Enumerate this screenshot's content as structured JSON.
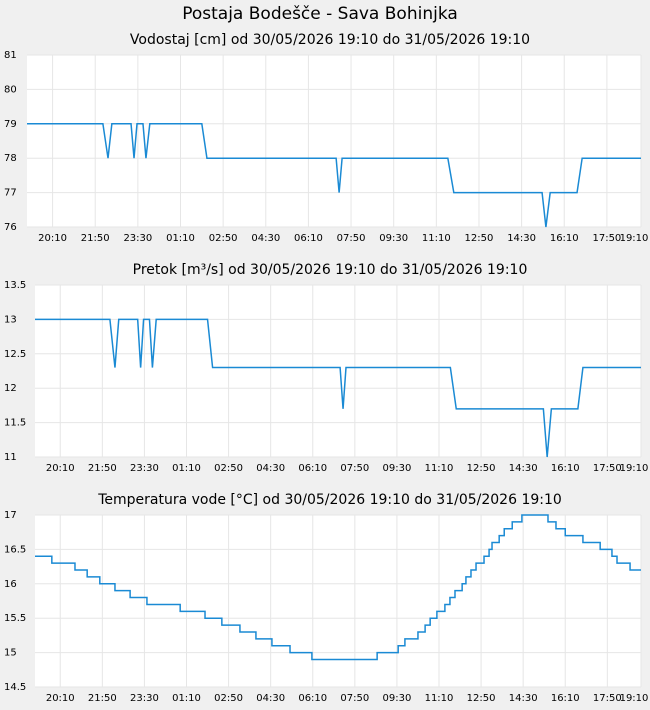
{
  "title": "Postaja Bodešče - Sava Bohinjka",
  "chart_data": [
    {
      "type": "line",
      "title": "Vodostaj [cm] od 30/05/2026 19:10 do 31/05/2026 19:10",
      "color": "#1a8ad4",
      "grid": true,
      "x": [
        0,
        178,
        190,
        199,
        244,
        251,
        258,
        272,
        279,
        288,
        410,
        422,
        725,
        732,
        739,
        987,
        1001,
        1208,
        1217,
        1227,
        1290,
        1302,
        1440
      ],
      "values": [
        79,
        79,
        78,
        79,
        79,
        78,
        79,
        79,
        78,
        79,
        79,
        78,
        78,
        77,
        78,
        78,
        77,
        77,
        76,
        77,
        77,
        78,
        78
      ],
      "xlim": [
        0,
        1440
      ],
      "xticks": [
        {
          "value": 60,
          "label": "20:10"
        },
        {
          "value": 160,
          "label": "21:50"
        },
        {
          "value": 260,
          "label": "23:30"
        },
        {
          "value": 360,
          "label": "01:10"
        },
        {
          "value": 460,
          "label": "02:50"
        },
        {
          "value": 560,
          "label": "04:30"
        },
        {
          "value": 660,
          "label": "06:10"
        },
        {
          "value": 760,
          "label": "07:50"
        },
        {
          "value": 860,
          "label": "09:30"
        },
        {
          "value": 960,
          "label": "11:10"
        },
        {
          "value": 1060,
          "label": "12:50"
        },
        {
          "value": 1160,
          "label": "14:30"
        },
        {
          "value": 1260,
          "label": "16:10"
        },
        {
          "value": 1360,
          "label": "17:50"
        },
        {
          "value": 1440,
          "label": "19:10"
        }
      ],
      "ylim": [
        76,
        81
      ],
      "yticks": [
        76,
        77,
        78,
        79,
        80,
        81
      ]
    },
    {
      "type": "line",
      "title": "Pretok [m³/s] od 30/05/2026 19:10 do 31/05/2026 19:10",
      "color": "#1a8ad4",
      "grid": true,
      "x": [
        0,
        178,
        190,
        199,
        244,
        251,
        258,
        272,
        279,
        288,
        410,
        422,
        725,
        732,
        739,
        987,
        1001,
        1208,
        1217,
        1227,
        1290,
        1302,
        1440
      ],
      "values": [
        13,
        13,
        12.3,
        13,
        13,
        12.3,
        13,
        13,
        12.3,
        13,
        13,
        12.3,
        12.3,
        11.7,
        12.3,
        12.3,
        11.7,
        11.7,
        11,
        11.7,
        11.7,
        12.3,
        12.3
      ],
      "xlim": [
        0,
        1440
      ],
      "xticks": [
        {
          "value": 60,
          "label": "20:10"
        },
        {
          "value": 160,
          "label": "21:50"
        },
        {
          "value": 260,
          "label": "23:30"
        },
        {
          "value": 360,
          "label": "01:10"
        },
        {
          "value": 460,
          "label": "02:50"
        },
        {
          "value": 560,
          "label": "04:30"
        },
        {
          "value": 660,
          "label": "06:10"
        },
        {
          "value": 760,
          "label": "07:50"
        },
        {
          "value": 860,
          "label": "09:30"
        },
        {
          "value": 960,
          "label": "11:10"
        },
        {
          "value": 1060,
          "label": "12:50"
        },
        {
          "value": 1160,
          "label": "14:30"
        },
        {
          "value": 1260,
          "label": "16:10"
        },
        {
          "value": 1360,
          "label": "17:50"
        },
        {
          "value": 1440,
          "label": "19:10"
        }
      ],
      "ylim": [
        11,
        13.5
      ],
      "yticks": [
        11,
        11.5,
        12,
        12.5,
        13,
        13.5
      ]
    },
    {
      "type": "line",
      "step": "after",
      "title": "Temperatura vode [°C] od 30/05/2026 19:10 do 31/05/2026 19:10",
      "color": "#1a8ad4",
      "grid": true,
      "x": [
        0,
        40,
        95,
        124,
        154,
        190,
        226,
        266,
        345,
        404,
        444,
        487,
        525,
        563,
        606,
        658,
        813,
        863,
        879,
        910,
        927,
        939,
        955,
        974,
        986,
        998,
        1015,
        1024,
        1036,
        1048,
        1067,
        1079,
        1086,
        1103,
        1115,
        1134,
        1157,
        1219,
        1238,
        1260,
        1302,
        1343,
        1371,
        1383,
        1414,
        1440
      ],
      "values": [
        16.4,
        16.3,
        16.2,
        16.1,
        16.0,
        15.9,
        15.8,
        15.7,
        15.6,
        15.5,
        15.4,
        15.3,
        15.2,
        15.1,
        15.0,
        14.9,
        15.0,
        15.1,
        15.2,
        15.3,
        15.4,
        15.5,
        15.6,
        15.7,
        15.8,
        15.9,
        16.0,
        16.1,
        16.2,
        16.3,
        16.4,
        16.5,
        16.6,
        16.7,
        16.8,
        16.9,
        17.0,
        16.9,
        16.8,
        16.7,
        16.6,
        16.5,
        16.4,
        16.3,
        16.2,
        16.2
      ],
      "xlim": [
        0,
        1440
      ],
      "xticks": [
        {
          "value": 60,
          "label": "20:10"
        },
        {
          "value": 160,
          "label": "21:50"
        },
        {
          "value": 260,
          "label": "23:30"
        },
        {
          "value": 360,
          "label": "01:10"
        },
        {
          "value": 460,
          "label": "02:50"
        },
        {
          "value": 560,
          "label": "04:30"
        },
        {
          "value": 660,
          "label": "06:10"
        },
        {
          "value": 760,
          "label": "07:50"
        },
        {
          "value": 860,
          "label": "09:30"
        },
        {
          "value": 960,
          "label": "11:10"
        },
        {
          "value": 1060,
          "label": "12:50"
        },
        {
          "value": 1160,
          "label": "14:30"
        },
        {
          "value": 1260,
          "label": "16:10"
        },
        {
          "value": 1360,
          "label": "17:50"
        },
        {
          "value": 1440,
          "label": "19:10"
        }
      ],
      "ylim": [
        14.5,
        17
      ],
      "yticks": [
        14.5,
        15,
        15.5,
        16,
        16.5,
        17
      ]
    }
  ]
}
